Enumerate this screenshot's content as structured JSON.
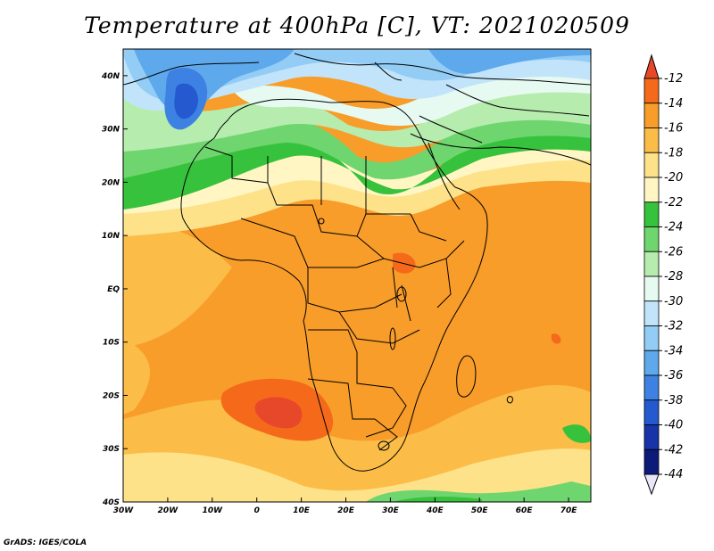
{
  "title": "Temperature at 400hPa [C], VT: 2021020509",
  "footer": "GrADS: IGES/COLA",
  "map": {
    "lon_range": [
      -30,
      75
    ],
    "lat_range": [
      -40,
      45
    ],
    "lon_ticks": [
      "30W",
      "20W",
      "10W",
      "0",
      "10E",
      "20E",
      "30E",
      "40E",
      "50E",
      "60E",
      "70E"
    ],
    "lon_values": [
      -30,
      -20,
      -10,
      0,
      10,
      20,
      30,
      40,
      50,
      60,
      70
    ],
    "lat_ticks": [
      "40N",
      "30N",
      "20N",
      "10N",
      "EQ",
      "10S",
      "20S",
      "30S",
      "40S"
    ],
    "lat_values": [
      40,
      30,
      20,
      10,
      0,
      -10,
      -20,
      -30,
      -40
    ]
  },
  "colorbar": {
    "labels": [
      "-12",
      "-14",
      "-16",
      "-18",
      "-20",
      "-22",
      "-24",
      "-26",
      "-28",
      "-30",
      "-32",
      "-34",
      "-36",
      "-38",
      "-40",
      "-42",
      "-44"
    ],
    "colors": [
      "#e8482a",
      "#f46a1a",
      "#f89c2a",
      "#fbbd48",
      "#fde28a",
      "#fff6c4",
      "#36c23c",
      "#6fd56e",
      "#b6ecae",
      "#e6faf2",
      "#c2e4fb",
      "#93cdf5",
      "#5ea8ec",
      "#3d82e3",
      "#2459cf",
      "#1834a8",
      "#0c1a78",
      "#e8e6f8"
    ]
  }
}
